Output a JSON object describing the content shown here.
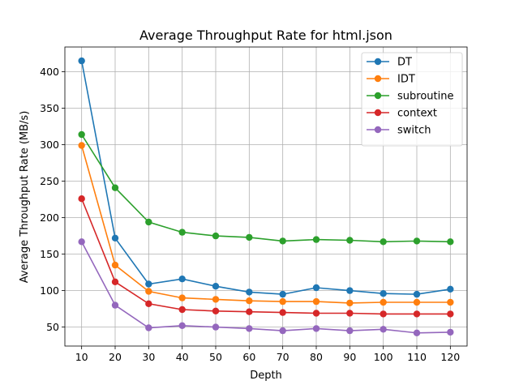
{
  "chart_data": {
    "type": "line",
    "title": "Average Throughput Rate for html.json",
    "xlabel": "Depth",
    "ylabel": "Average Throughput Rate (MB/s)",
    "x": [
      10,
      20,
      30,
      40,
      50,
      60,
      70,
      80,
      90,
      100,
      110,
      120
    ],
    "xticks": [
      "10",
      "20",
      "30",
      "40",
      "50",
      "60",
      "70",
      "80",
      "90",
      "100",
      "110",
      "120"
    ],
    "yticks": [
      "50",
      "100",
      "150",
      "200",
      "250",
      "300",
      "350",
      "400"
    ],
    "xlim": [
      5,
      125
    ],
    "ylim": [
      24,
      434
    ],
    "grid": true,
    "legend_position": "top-right",
    "series": [
      {
        "name": "DT",
        "color": "#1f77b4",
        "values": [
          415,
          172,
          109,
          116,
          106,
          98,
          95,
          104,
          100,
          96,
          95,
          102
        ]
      },
      {
        "name": "IDT",
        "color": "#ff7f0e",
        "values": [
          299,
          135,
          99,
          90,
          88,
          86,
          85,
          85,
          83,
          84,
          84,
          84
        ]
      },
      {
        "name": "subroutine",
        "color": "#2ca02c",
        "values": [
          314,
          241,
          194,
          180,
          175,
          173,
          168,
          170,
          169,
          167,
          168,
          167
        ]
      },
      {
        "name": "context",
        "color": "#d62728",
        "values": [
          226,
          112,
          82,
          74,
          72,
          71,
          70,
          69,
          69,
          68,
          68,
          68
        ]
      },
      {
        "name": "switch",
        "color": "#9467bd",
        "values": [
          167,
          80,
          49,
          52,
          50,
          48,
          45,
          48,
          45,
          47,
          42,
          43
        ]
      }
    ]
  }
}
